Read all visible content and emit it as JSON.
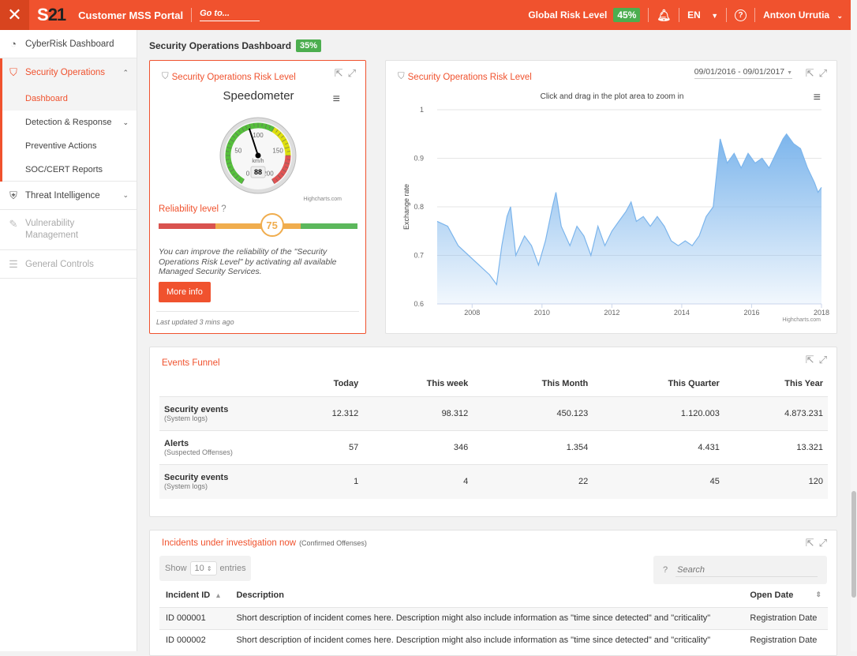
{
  "header": {
    "title": "Customer MSS Portal",
    "logo": "S21",
    "goto": "Go to...",
    "global_risk_label": "Global Risk Level",
    "global_risk_value": "45%",
    "lang": "EN",
    "user": "Antxon Urrutia"
  },
  "sidebar": {
    "items": [
      {
        "label": "CyberRisk Dashboard",
        "icon": "dashboard-icon"
      },
      {
        "label": "Security Operations",
        "icon": "shield-gear-icon",
        "sub": [
          "Dashboard",
          "Detection & Response",
          "Preventive Actions",
          "SOC/CERT Reports"
        ]
      },
      {
        "label": "Threat Intelligence",
        "icon": "shield-check-icon"
      },
      {
        "label": "Vulnerability Management",
        "icon": "document-edit-icon"
      },
      {
        "label": "General Controls",
        "icon": "sliders-icon"
      }
    ]
  },
  "page": {
    "title": "Security Operations Dashboard",
    "badge": "35%"
  },
  "risk_card": {
    "title": "Security Operations Risk Level",
    "gauge_title": "Speedometer",
    "gauge_unit": "km/h",
    "gauge_value": 88,
    "gauge_min": 0,
    "gauge_max": 200,
    "gauge_labels": [
      "0",
      "50",
      "100",
      "150",
      "200"
    ],
    "credits": "Highcharts.com",
    "reliability_label": "Reliability level",
    "reliability_help": "?",
    "reliability_value": "75",
    "reliability_fraction": 0.57,
    "text": "You can improve the reliability of the \"Security Operations Risk Level\" by activating all available Managed Security Services.",
    "button": "More info",
    "updated": "Last updated 3 mins ago"
  },
  "chart_card": {
    "title": "Security Operations Risk Level",
    "date_range": "09/01/2016 - 09/01/2017",
    "subtitle": "Click and drag in the plot area to zoom in",
    "credits": "Highcharts.com"
  },
  "chart_data": {
    "type": "area",
    "ylabel": "Exchange rate",
    "ylim": [
      0.6,
      1
    ],
    "yticks": [
      "0.6",
      "0.7",
      "0.8",
      "0.9",
      "1"
    ],
    "xticks": [
      "2008",
      "2010",
      "2012",
      "2014",
      "2016",
      "2018"
    ],
    "xlim": [
      2007.0,
      2018.0
    ],
    "grid": true,
    "x": [
      2007.0,
      2007.3,
      2007.6,
      2007.9,
      2008.2,
      2008.5,
      2008.7,
      2008.85,
      2009.0,
      2009.1,
      2009.25,
      2009.5,
      2009.7,
      2009.9,
      2010.1,
      2010.3,
      2010.4,
      2010.55,
      2010.8,
      2011.0,
      2011.2,
      2011.4,
      2011.6,
      2011.8,
      2012.0,
      2012.2,
      2012.4,
      2012.55,
      2012.7,
      2012.9,
      2013.1,
      2013.3,
      2013.5,
      2013.7,
      2013.9,
      2014.1,
      2014.3,
      2014.5,
      2014.7,
      2014.9,
      2015.0,
      2015.1,
      2015.3,
      2015.5,
      2015.7,
      2015.9,
      2016.1,
      2016.3,
      2016.5,
      2016.7,
      2016.9,
      2017.0,
      2017.2,
      2017.4,
      2017.6,
      2017.8,
      2017.9,
      2018.0
    ],
    "y": [
      0.77,
      0.76,
      0.72,
      0.7,
      0.68,
      0.66,
      0.64,
      0.72,
      0.78,
      0.8,
      0.7,
      0.74,
      0.72,
      0.68,
      0.73,
      0.8,
      0.83,
      0.76,
      0.72,
      0.76,
      0.74,
      0.7,
      0.76,
      0.72,
      0.75,
      0.77,
      0.79,
      0.81,
      0.77,
      0.78,
      0.76,
      0.78,
      0.76,
      0.73,
      0.72,
      0.73,
      0.72,
      0.74,
      0.78,
      0.8,
      0.87,
      0.94,
      0.89,
      0.91,
      0.88,
      0.91,
      0.89,
      0.9,
      0.88,
      0.91,
      0.94,
      0.95,
      0.93,
      0.92,
      0.88,
      0.85,
      0.83,
      0.84
    ]
  },
  "funnel": {
    "title": "Events Funnel",
    "columns": [
      "Today",
      "This week",
      "This Month",
      "This Quarter",
      "This Year"
    ],
    "rows": [
      {
        "name": "Security events",
        "sub": "(System logs)",
        "values": [
          "12.312",
          "98.312",
          "450.123",
          "1.120.003",
          "4.873.231"
        ]
      },
      {
        "name": "Alerts",
        "sub": "(Suspected Offenses)",
        "values": [
          "57",
          "346",
          "1.354",
          "4.431",
          "13.321"
        ]
      },
      {
        "name": "Security events",
        "sub": "(System logs)",
        "values": [
          "1",
          "4",
          "22",
          "45",
          "120"
        ]
      }
    ]
  },
  "incidents": {
    "title": "Incidents under investigation now",
    "subtitle": "(Confirmed Offenses)",
    "show": "Show",
    "entries_value": "10",
    "entries": "entries",
    "search_placeholder": "Search",
    "columns": [
      "Incident ID",
      "Description",
      "Open Date"
    ],
    "rows": [
      {
        "id": "ID 000001",
        "desc": "Short description of incident comes here. Description might also include information as \"time since detected\" and \"criticality\"",
        "date": "Registration Date"
      },
      {
        "id": "ID 000002",
        "desc": "Short description of incident comes here. Description might also include information as \"time since detected\" and \"criticality\"",
        "date": "Registration Date"
      }
    ]
  },
  "colors": {
    "accent": "#f0522e",
    "green": "#4cae4f",
    "red": "#d9534f",
    "orange": "#f0ad4e",
    "area": "#7cb5ec"
  }
}
